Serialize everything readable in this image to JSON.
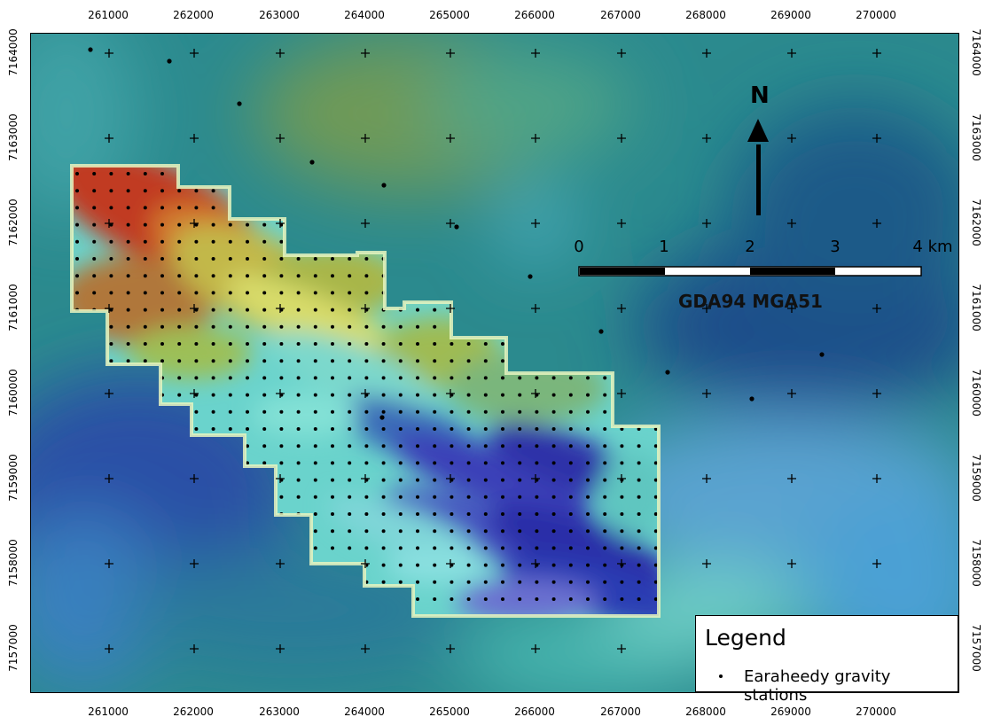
{
  "map": {
    "x_ticks": [
      "261000",
      "262000",
      "263000",
      "264000",
      "265000",
      "266000",
      "267000",
      "268000",
      "269000",
      "270000"
    ],
    "y_ticks": [
      "7164000",
      "7163000",
      "7162000",
      "7161000",
      "7160000",
      "7159000",
      "7158000",
      "7157000"
    ],
    "north_label": "N",
    "scale_bar": {
      "labels": [
        "0",
        "1",
        "2",
        "3",
        "4 km"
      ]
    },
    "datum": "GDA94 MGA51",
    "colors": {
      "background": "#2e8f92",
      "survey_high": "#c03a22",
      "survey_mid": "#c7c34a",
      "survey_cyan": "#6fd7d0",
      "survey_low": "#3236b8",
      "station_dot": "#000000"
    }
  },
  "legend": {
    "title": "Legend",
    "items": [
      {
        "symbol": "black-dot",
        "label": "Earaheedy gravity stations"
      }
    ]
  }
}
